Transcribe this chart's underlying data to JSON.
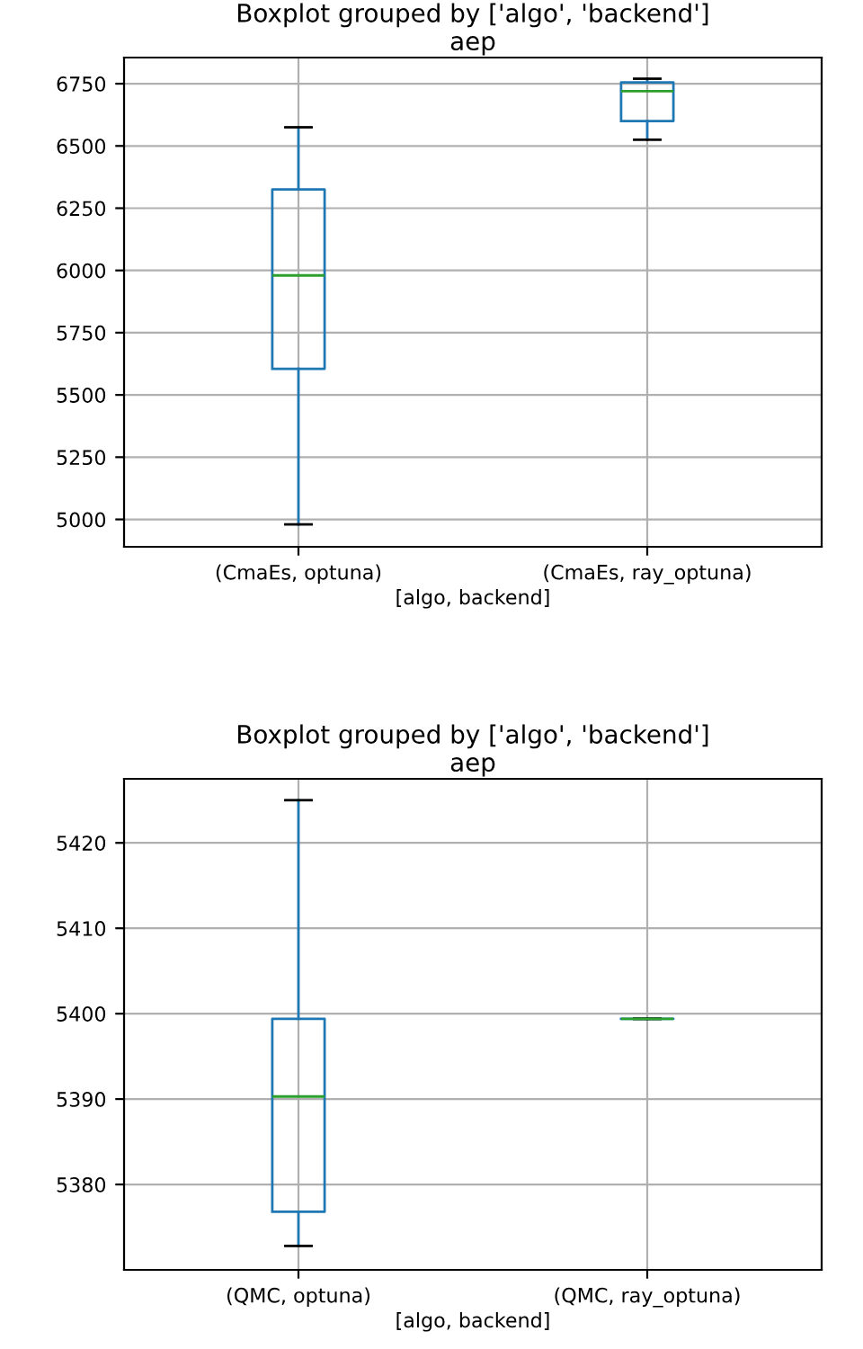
{
  "chart_data": [
    {
      "type": "box",
      "title": "Boxplot grouped by ['algo', 'backend']",
      "subtitle": "aep",
      "xlabel": "[algo, backend]",
      "categories": [
        "(CmaEs, optuna)",
        "(CmaEs, ray_optuna)"
      ],
      "color": "#1f77b4",
      "boxes": [
        {
          "low": 4980,
          "q1": 5605,
          "median": 5980,
          "q3": 6325,
          "high": 6575
        },
        {
          "low": 6525,
          "q1": 6600,
          "median": 6720,
          "q3": 6755,
          "high": 6770
        }
      ],
      "ylim": [
        4890,
        6855
      ],
      "yticks": [
        5000,
        5250,
        5500,
        5750,
        6000,
        6250,
        6500,
        6750
      ],
      "grid": true
    },
    {
      "type": "box",
      "title": "Boxplot grouped by ['algo', 'backend']",
      "subtitle": "aep",
      "xlabel": "[algo, backend]",
      "categories": [
        "(QMC, optuna)",
        "(QMC, ray_optuna)"
      ],
      "color": "#1f77b4",
      "boxes": [
        {
          "low": 5372.8,
          "q1": 5376.8,
          "median": 5390.3,
          "q3": 5399.4,
          "high": 5425
        },
        {
          "low": 5399.4,
          "q1": 5399.4,
          "median": 5399.4,
          "q3": 5399.4,
          "high": 5399.4
        }
      ],
      "ylim": [
        5370,
        5427.5
      ],
      "yticks": [
        5380,
        5390,
        5400,
        5410,
        5420
      ],
      "grid": true
    }
  ]
}
